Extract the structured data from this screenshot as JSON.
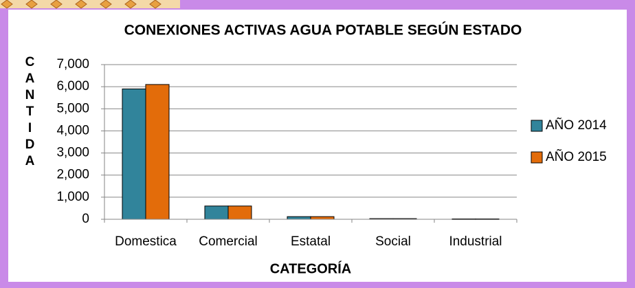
{
  "chart_data": {
    "type": "bar",
    "title": "CONEXIONES ACTIVAS AGUA POTABLE SEGÚN ESTADO",
    "y_label": "CANTIDA",
    "x_label": "CATEGORÍA",
    "categories": [
      "Domestica",
      "Comercial",
      "Estatal",
      "Social",
      "Industrial"
    ],
    "series": [
      {
        "name": "AÑO 2014",
        "color": "#31849b",
        "values": [
          5900,
          600,
          120,
          30,
          20
        ]
      },
      {
        "name": "AÑO 2015",
        "color": "#e36c0a",
        "values": [
          6100,
          600,
          120,
          30,
          20
        ]
      }
    ],
    "ylim": [
      0,
      7000
    ],
    "yticks": [
      0,
      {
        "value": 1000,
        "label": "1,000"
      },
      {
        "value": 2000,
        "label": "2,000"
      },
      {
        "value": 3000,
        "label": "3,000"
      },
      {
        "value": 4000,
        "label": "4,000"
      },
      {
        "value": 5000,
        "label": "5,000"
      },
      {
        "value": 6000,
        "label": "6,000"
      },
      {
        "value": 7000,
        "label": "7,000"
      }
    ],
    "grid": true,
    "legend": "right"
  }
}
